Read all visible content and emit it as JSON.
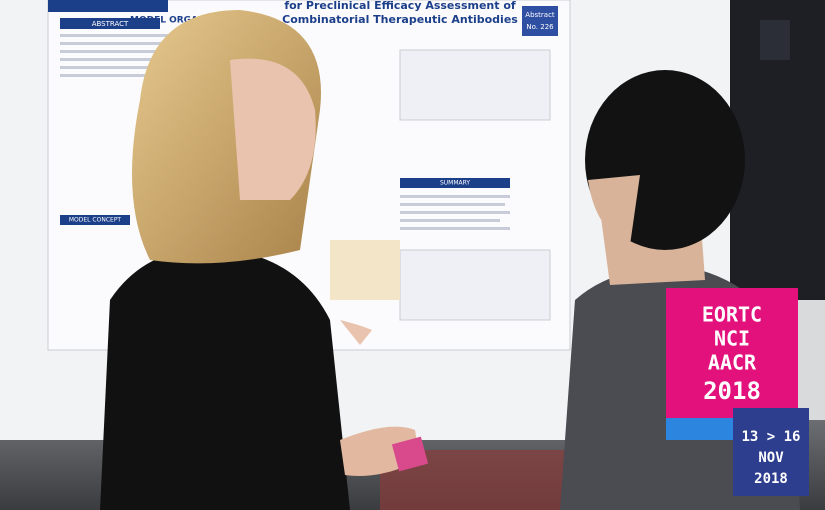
{
  "poster": {
    "logo": "MODEL ORGANISMS",
    "title_lines": [
      "for Preclinical Efficacy Assessment of",
      "Combinatorial Therapeutic Antibodies"
    ],
    "sections": [
      "ABSTRACT",
      "MODEL CONCEPT",
      "SUMMARY"
    ],
    "abstract_badge": {
      "label": "Abstract",
      "number": "No. 226"
    }
  },
  "badge": {
    "lines": [
      "EORTC",
      "NCI",
      "AACR",
      "2018"
    ],
    "dates": "13 > 16",
    "month": "NOV",
    "year": "2018"
  }
}
